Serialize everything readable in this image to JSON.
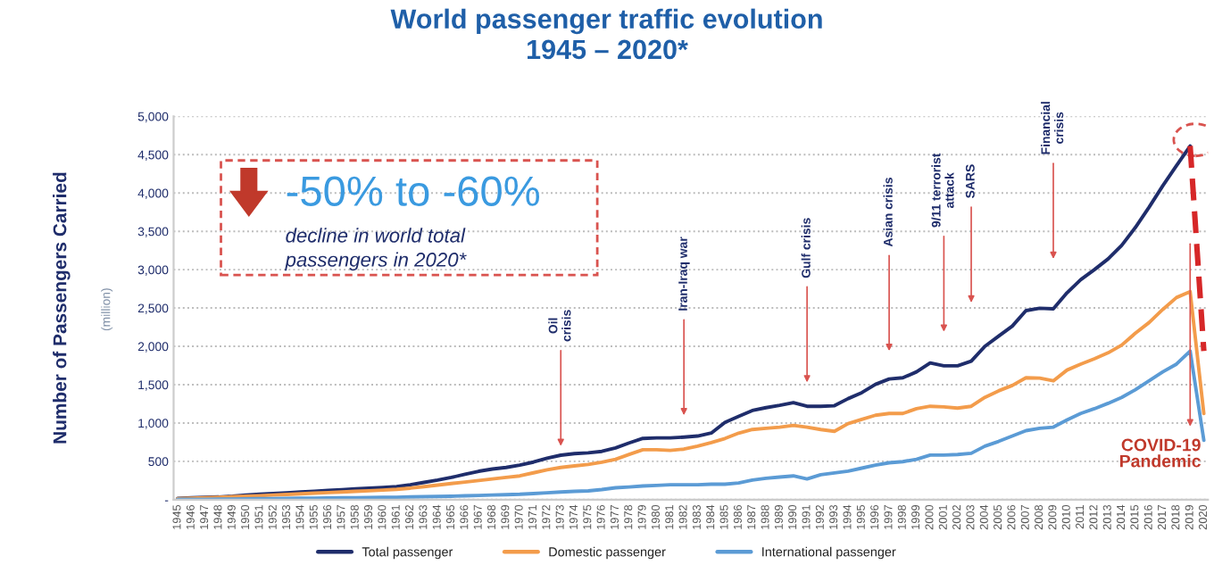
{
  "chart_data": {
    "type": "line",
    "title": "World passenger traffic evolution\n1945 – 2020*",
    "ylabel": "Number of Passengers Carried",
    "categories": [
      "1945",
      "1946",
      "1947",
      "1948",
      "1949",
      "1950",
      "1951",
      "1952",
      "1953",
      "1954",
      "1955",
      "1956",
      "1957",
      "1958",
      "1959",
      "1960",
      "1961",
      "1962",
      "1963",
      "1964",
      "1965",
      "1966",
      "1967",
      "1968",
      "1969",
      "1970",
      "1971",
      "1972",
      "1973",
      "1974",
      "1975",
      "1976",
      "1977",
      "1978",
      "1979",
      "1980",
      "1981",
      "1982",
      "1983",
      "1984",
      "1985",
      "1986",
      "1987",
      "1988",
      "1989",
      "1990",
      "1991",
      "1992",
      "1993",
      "1994",
      "1995",
      "1996",
      "1997",
      "1998",
      "1999",
      "2000",
      "2001",
      "2002",
      "2003",
      "2004",
      "2005",
      "2006",
      "2007",
      "2008",
      "2009",
      "2010",
      "2011",
      "2012",
      "2013",
      "2014",
      "2015",
      "2016",
      "2017",
      "2018",
      "2019",
      "2020"
    ],
    "series": [
      {
        "name": "Total passenger",
        "color": "#1f2d6b",
        "values": [
          15,
          25,
          30,
          35,
          45,
          60,
          70,
          80,
          90,
          100,
          110,
          120,
          130,
          140,
          150,
          160,
          170,
          195,
          225,
          255,
          290,
          330,
          370,
          400,
          420,
          450,
          490,
          540,
          580,
          600,
          610,
          630,
          675,
          740,
          799,
          805,
          805,
          816,
          830,
          869,
          1008,
          1086,
          1163,
          1200,
          1230,
          1265,
          1218,
          1218,
          1225,
          1318,
          1396,
          1504,
          1574,
          1590,
          1667,
          1783,
          1745,
          1745,
          1806,
          2000,
          2132,
          2264,
          2466,
          2497,
          2490,
          2698,
          2869,
          3000,
          3140,
          3318,
          3551,
          3815,
          4094,
          4357,
          4613,
          null
        ]
      },
      {
        "name": "Domestic passenger",
        "color": "#f39c4b",
        "values": [
          12,
          20,
          25,
          30,
          38,
          45,
          52,
          60,
          68,
          76,
          85,
          92,
          100,
          108,
          116,
          125,
          135,
          150,
          170,
          190,
          210,
          230,
          250,
          270,
          290,
          310,
          350,
          390,
          420,
          440,
          460,
          488,
          527,
          590,
          651,
          651,
          643,
          659,
          698,
          744,
          798,
          868,
          915,
          930,
          946,
          969,
          946,
          915,
          892,
          992,
          1047,
          1101,
          1124,
          1124,
          1186,
          1218,
          1210,
          1194,
          1218,
          1334,
          1419,
          1489,
          1590,
          1585,
          1550,
          1690,
          1768,
          1838,
          1915,
          2016,
          2171,
          2310,
          2481,
          2636,
          2713,
          1124
        ]
      },
      {
        "name": "International passenger",
        "color": "#5b9bd5",
        "values": [
          3,
          4,
          5,
          6,
          8,
          10,
          12,
          14,
          16,
          18,
          20,
          22,
          24,
          26,
          28,
          30,
          32,
          35,
          38,
          42,
          45,
          50,
          55,
          60,
          65,
          70,
          80,
          90,
          100,
          108,
          115,
          132,
          155,
          165,
          178,
          186,
          194,
          194,
          194,
          202,
          202,
          217,
          256,
          279,
          295,
          310,
          271,
          326,
          349,
          372,
          411,
          450,
          481,
          496,
          527,
          582,
          582,
          589,
          605,
          698,
          760,
          830,
          900,
          930,
          946,
          1039,
          1124,
          1186,
          1256,
          1334,
          1434,
          1550,
          1667,
          1768,
          1938,
          775
        ]
      },
      {
        "color": "#d62728",
        "line_style": "dashed",
        "values": [
          null,
          null,
          null,
          null,
          null,
          null,
          null,
          null,
          null,
          null,
          null,
          null,
          null,
          null,
          null,
          null,
          null,
          null,
          null,
          null,
          null,
          null,
          null,
          null,
          null,
          null,
          null,
          null,
          null,
          null,
          null,
          null,
          null,
          null,
          null,
          null,
          null,
          null,
          null,
          null,
          null,
          null,
          null,
          null,
          null,
          null,
          null,
          null,
          null,
          null,
          null,
          null,
          null,
          null,
          null,
          null,
          null,
          null,
          null,
          null,
          null,
          null,
          null,
          null,
          null,
          null,
          null,
          null,
          null,
          null,
          null,
          null,
          null,
          null,
          4613,
          1940
        ]
      }
    ],
    "ylim": [
      0,
      5000
    ],
    "yticks": [
      {
        "value": 0,
        "label": "-"
      },
      500,
      {
        "value": 1000,
        "label": "1,000"
      },
      {
        "value": 1500,
        "label": "1,500"
      },
      {
        "value": 2000,
        "label": "2,000"
      },
      {
        "value": 2500,
        "label": "2,500"
      },
      {
        "value": 3000,
        "label": "3,000"
      },
      {
        "value": 3500,
        "label": "3,500"
      },
      {
        "value": 4000,
        "label": "4,000"
      },
      {
        "value": 4500,
        "label": "4,500"
      },
      {
        "value": 5000,
        "label": "5,000"
      }
    ],
    "grid": "y",
    "legend": "bottom",
    "annotations": [
      "(million)",
      "-50% to -60%",
      "decline in world total\npassengers in 2020*",
      "Oil\ncrisis",
      "Iran-Iraq war",
      "Gulf crisis",
      "Asian crisis",
      "9/11 terrorist\nattack",
      "SARS",
      "Financial\ncrisis",
      "COVID-19\nPandemic"
    ]
  }
}
